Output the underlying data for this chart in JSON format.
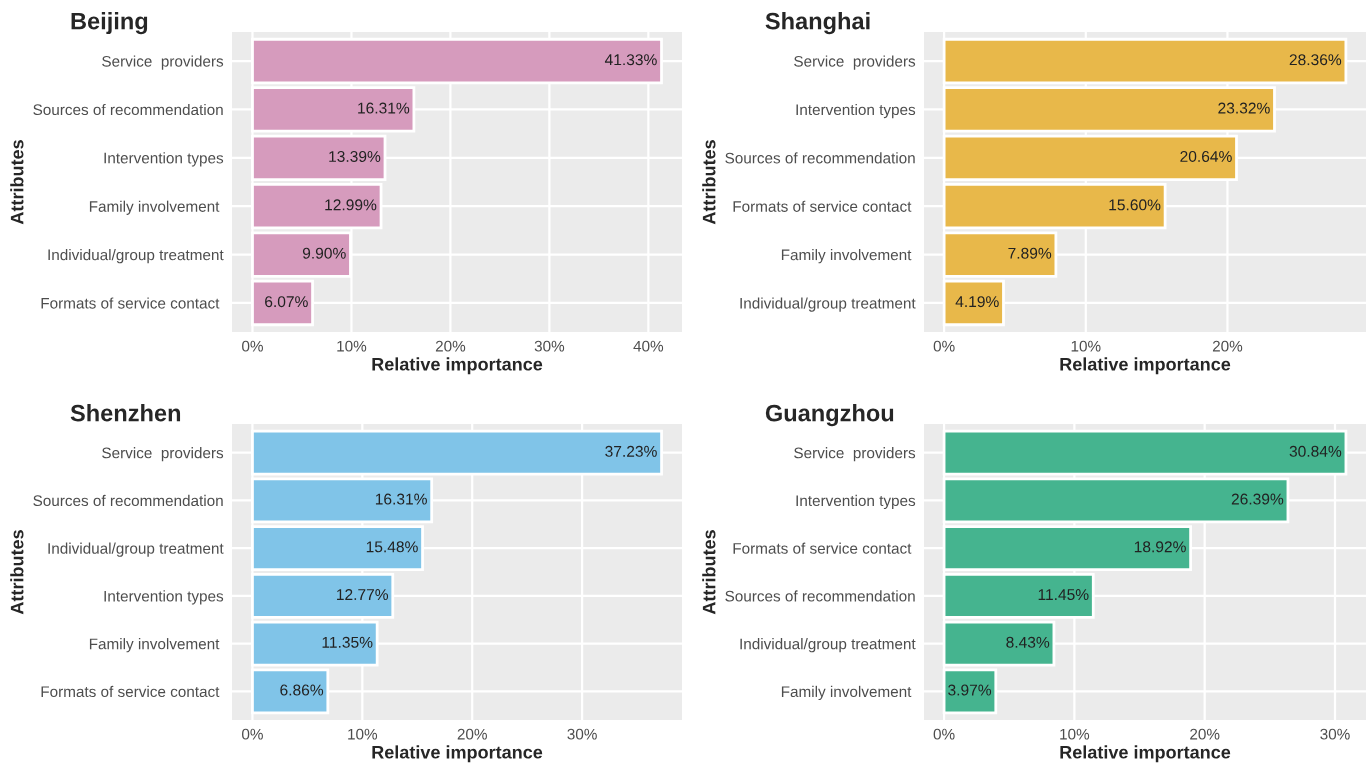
{
  "chart_data": [
    {
      "type": "bar",
      "orientation": "horizontal",
      "title": "Beijing",
      "xlabel": "Relative importance",
      "ylabel": "Attributes",
      "color": "#d69bbd",
      "grid": true,
      "legend": false,
      "categories": [
        "Service  providers",
        "Sources of recommendation",
        "Intervention types",
        "Family involvement ",
        "Individual/group treatment",
        "Formats of service contact "
      ],
      "values": [
        41.33,
        16.31,
        13.39,
        12.99,
        9.9,
        6.07
      ],
      "value_labels": [
        "41.33%",
        "16.31%",
        "13.39%",
        "12.99%",
        "9.90%",
        "6.07%"
      ],
      "xlim": [
        -2.07,
        43.4
      ],
      "xticks": [
        {
          "value": 0,
          "label": "0%"
        },
        {
          "value": 10,
          "label": "10%"
        },
        {
          "value": 20,
          "label": "20%"
        },
        {
          "value": 30,
          "label": "30%"
        },
        {
          "value": 40,
          "label": "40%"
        }
      ]
    },
    {
      "type": "bar",
      "orientation": "horizontal",
      "title": "Shanghai",
      "xlabel": "Relative importance",
      "ylabel": "Attributes",
      "color": "#e8b84a",
      "grid": true,
      "legend": false,
      "categories": [
        "Service  providers",
        "Intervention types",
        "Sources of recommendation",
        "Formats of service contact ",
        "Family involvement ",
        "Individual/group treatment"
      ],
      "values": [
        28.36,
        23.32,
        20.64,
        15.6,
        7.89,
        4.19
      ],
      "value_labels": [
        "28.36%",
        "23.32%",
        "20.64%",
        "15.60%",
        "7.89%",
        "4.19%"
      ],
      "xlim": [
        -1.42,
        29.78
      ],
      "xticks": [
        {
          "value": 0,
          "label": "0%"
        },
        {
          "value": 10,
          "label": "10%"
        },
        {
          "value": 20,
          "label": "20%"
        }
      ]
    },
    {
      "type": "bar",
      "orientation": "horizontal",
      "title": "Shenzhen",
      "xlabel": "Relative importance",
      "ylabel": "Attributes",
      "color": "#80c4e8",
      "grid": true,
      "legend": false,
      "categories": [
        "Service  providers",
        "Sources of recommendation",
        "Individual/group treatment",
        "Intervention types",
        "Family involvement ",
        "Formats of service contact "
      ],
      "values": [
        37.23,
        16.31,
        15.48,
        12.77,
        11.35,
        6.86
      ],
      "value_labels": [
        "37.23%",
        "16.31%",
        "15.48%",
        "12.77%",
        "11.35%",
        "6.86%"
      ],
      "xlim": [
        -1.86,
        39.09
      ],
      "xticks": [
        {
          "value": 0,
          "label": "0%"
        },
        {
          "value": 10,
          "label": "10%"
        },
        {
          "value": 20,
          "label": "20%"
        },
        {
          "value": 30,
          "label": "30%"
        }
      ]
    },
    {
      "type": "bar",
      "orientation": "horizontal",
      "title": "Guangzhou",
      "xlabel": "Relative importance",
      "ylabel": "Attributes",
      "color": "#45b48f",
      "grid": true,
      "legend": false,
      "categories": [
        "Service  providers",
        "Intervention types",
        "Formats of service contact ",
        "Sources of recommendation",
        "Individual/group treatment",
        "Family involvement "
      ],
      "values": [
        30.84,
        26.39,
        18.92,
        11.45,
        8.43,
        3.97
      ],
      "value_labels": [
        "30.84%",
        "26.39%",
        "18.92%",
        "11.45%",
        "8.43%",
        "3.97%"
      ],
      "xlim": [
        -1.54,
        32.38
      ],
      "xticks": [
        {
          "value": 0,
          "label": "0%"
        },
        {
          "value": 10,
          "label": "10%"
        },
        {
          "value": 20,
          "label": "20%"
        },
        {
          "value": 30,
          "label": "30%"
        }
      ]
    }
  ]
}
